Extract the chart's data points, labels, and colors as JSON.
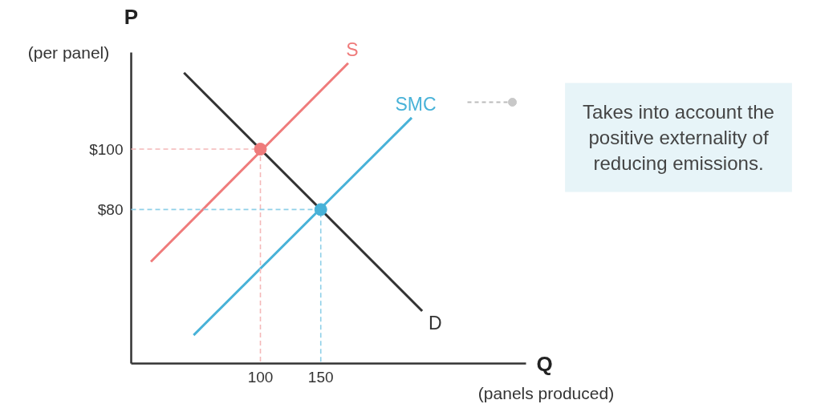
{
  "chart_data": {
    "type": "line",
    "xlabel": "Q\n(panels produced)",
    "ylabel": "P\n(per panel)",
    "xlim": [
      -7,
      320
    ],
    "ylim": [
      29,
      132
    ],
    "xticks": [
      100,
      150
    ],
    "yticks": [
      {
        "value": 80,
        "label": "$80"
      },
      {
        "value": 100,
        "label": "$100"
      }
    ],
    "grid": false,
    "line_style": "solid",
    "series": [
      {
        "name": "S",
        "color": "#ef7b7b",
        "x": [
          9.3,
          172.7
        ],
        "values": [
          62.7,
          128.5
        ]
      },
      {
        "name": "SMC",
        "color": "#48b2d8",
        "x": [
          44.7,
          225.3
        ],
        "values": [
          38.4,
          110.4
        ]
      },
      {
        "name": "D",
        "color": "#333333",
        "x": [
          36.7,
          234
        ],
        "values": [
          125.3,
          46.4
        ]
      },
      {
        "type": "line",
        "color": "#f5b8b8",
        "line_style": "dashed",
        "x": [
          -7,
          100,
          100
        ],
        "values": [
          100,
          100,
          29
        ]
      },
      {
        "type": "line",
        "color": "#8fd0e8",
        "line_style": "dashed",
        "x": [
          -7,
          150,
          150
        ],
        "values": [
          80,
          80,
          29
        ]
      },
      {
        "type": "scatter",
        "marker": "circle",
        "color": "#ef7b7b",
        "x": [
          100
        ],
        "values": [
          100
        ]
      },
      {
        "type": "scatter",
        "marker": "circle",
        "color": "#48b2d8",
        "x": [
          150
        ],
        "values": [
          80
        ]
      }
    ],
    "annotations": [
      "Takes into account the\npositive externality of\nreducing emissions."
    ]
  }
}
